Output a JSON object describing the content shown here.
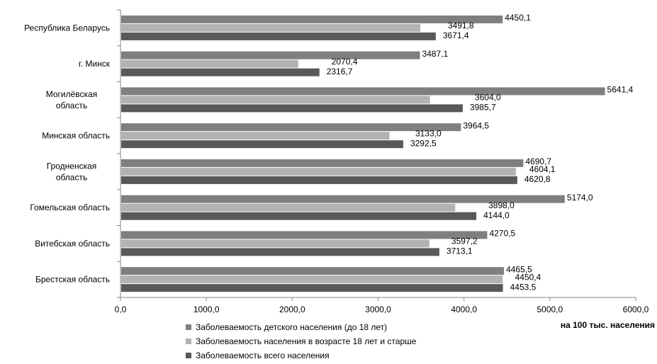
{
  "chart_data": {
    "type": "bar",
    "orientation": "horizontal",
    "categories": [
      "Республика Беларусь",
      "г. Минск",
      "Могилёвская область",
      "Минская область",
      "Гродненская область",
      "Гомельская область",
      "Витебская область",
      "Брестская область"
    ],
    "series": [
      {
        "name": "Заболеваемость детского населения (до 18 лет)",
        "color": "#7f7f7f",
        "values": [
          4450.1,
          3487.1,
          5641.4,
          3964.5,
          4690.7,
          5174.0,
          4270.5,
          4465.5
        ],
        "labels": [
          "4450,1",
          "3487,1",
          "5641,4",
          "3964,5",
          "4690,7",
          "5174,0",
          "4270,5",
          "4465,5"
        ]
      },
      {
        "name": "Заболеваемость населения в возрасте 18 лет и старше",
        "color": "#b2b2b2",
        "values": [
          3491.8,
          2070.4,
          3604.0,
          3133.0,
          4604.1,
          3898.0,
          3597.2,
          4450.4
        ],
        "labels": [
          "3491,8",
          "2070,4",
          "3604,0",
          "3133,0",
          "4604,1",
          "3898,0",
          "3597,2",
          "4450,4"
        ]
      },
      {
        "name": "Заболеваемость всего населения",
        "color": "#595959",
        "values": [
          3671.4,
          2316.7,
          3985.7,
          3292.5,
          4620.8,
          4144.0,
          3713.1,
          4453.5
        ],
        "labels": [
          "3671,4",
          "2316,7",
          "3985,7",
          "3292,5",
          "4620,8",
          "4144,0",
          "3713,1",
          "4453,5"
        ]
      }
    ],
    "xlim": [
      0,
      6000
    ],
    "xticks": [
      0,
      1000,
      2000,
      3000,
      4000,
      5000,
      6000
    ],
    "xtick_labels": [
      "0,0",
      "1000,0",
      "2000,0",
      "3000,0",
      "4000,0",
      "5000,0",
      "6000,0"
    ],
    "xlabel": "на 100 тыс. населения",
    "legend_position": "bottom",
    "grid": false
  }
}
